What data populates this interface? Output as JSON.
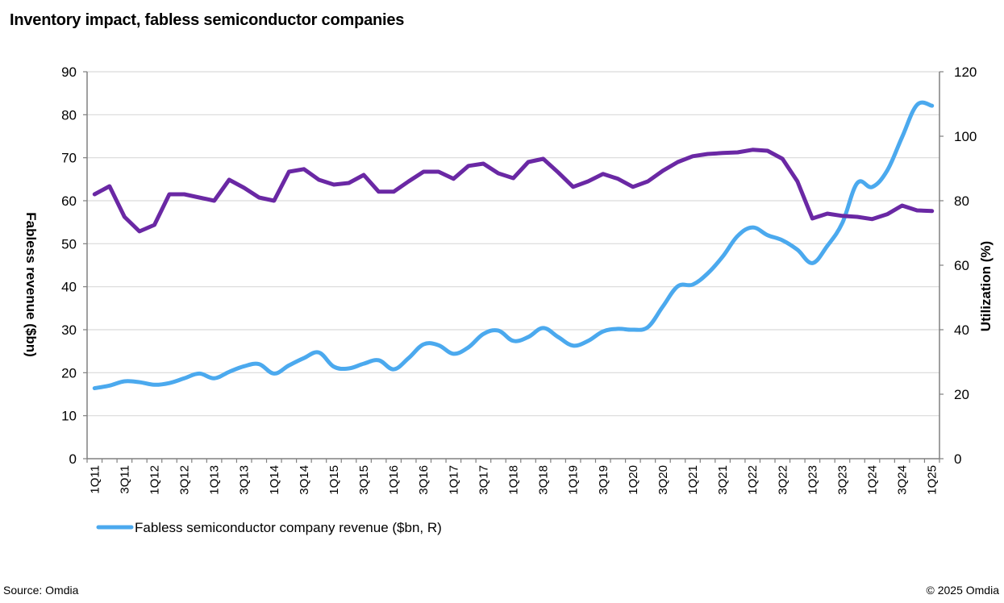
{
  "header": {
    "title": "Inventory impact, fabless semiconductor  companies"
  },
  "footer": {
    "source": "Source: Omdia",
    "copyright": "© 2025 Omdia"
  },
  "chart_data": {
    "type": "line",
    "title": "Inventory impact, fabless semiconductor  companies",
    "xlabel": "",
    "ylabel": "Fabless revenue ($bn)",
    "y2label": "Utilization (%)",
    "ylim": [
      0,
      90
    ],
    "y2lim": [
      0,
      120
    ],
    "yticks": [
      0,
      10,
      20,
      30,
      40,
      50,
      60,
      70,
      80,
      90
    ],
    "y2ticks": [
      0,
      20,
      40,
      60,
      80,
      100,
      120
    ],
    "grid": true,
    "legend_position": "bottom-left",
    "x": [
      "1Q11",
      "2Q11",
      "3Q11",
      "4Q11",
      "1Q12",
      "2Q12",
      "3Q12",
      "4Q12",
      "1Q13",
      "2Q13",
      "3Q13",
      "4Q13",
      "1Q14",
      "2Q14",
      "3Q14",
      "4Q14",
      "1Q15",
      "2Q15",
      "3Q15",
      "4Q15",
      "1Q16",
      "2Q16",
      "3Q16",
      "4Q16",
      "1Q17",
      "2Q17",
      "3Q17",
      "4Q17",
      "1Q18",
      "2Q18",
      "3Q18",
      "4Q18",
      "1Q19",
      "2Q19",
      "3Q19",
      "4Q19",
      "1Q20",
      "2Q20",
      "3Q20",
      "4Q20",
      "1Q21",
      "2Q21",
      "3Q21",
      "4Q21",
      "1Q22",
      "2Q22",
      "3Q22",
      "4Q22",
      "1Q23",
      "2Q23",
      "3Q23",
      "4Q23",
      "1Q24",
      "2Q24",
      "3Q24",
      "4Q24",
      "1Q25"
    ],
    "x_tick_labels_shown": [
      "1Q11",
      "3Q11",
      "1Q12",
      "3Q12",
      "1Q13",
      "3Q13",
      "1Q14",
      "3Q14",
      "1Q15",
      "3Q15",
      "1Q16",
      "3Q16",
      "1Q17",
      "3Q17",
      "1Q18",
      "3Q18",
      "1Q19",
      "3Q19",
      "1Q20",
      "3Q20",
      "1Q21",
      "3Q21",
      "1Q22",
      "3Q22",
      "1Q23",
      "3Q23",
      "1Q24",
      "3Q24",
      "1Q25"
    ],
    "series": [
      {
        "name": "Fabless semiconductor company revenue  ($bn, R)",
        "axis": "left",
        "color": "#4BA9EE",
        "smooth": true,
        "in_legend": true,
        "values": [
          16.4,
          17.0,
          18.0,
          17.8,
          17.2,
          17.6,
          18.7,
          19.8,
          18.7,
          20.2,
          21.5,
          22.0,
          19.8,
          21.7,
          23.4,
          24.7,
          21.4,
          21.0,
          22.1,
          22.9,
          20.8,
          23.4,
          26.6,
          26.4,
          24.4,
          25.9,
          29.0,
          29.8,
          27.4,
          28.3,
          30.4,
          28.3,
          26.3,
          27.4,
          29.6,
          30.2,
          30.0,
          30.6,
          35.4,
          40.1,
          40.5,
          43.1,
          47.0,
          51.8,
          53.8,
          52.0,
          50.8,
          48.6,
          45.5,
          49.5,
          54.8,
          64.1,
          63.2,
          67.0,
          74.8,
          82.3,
          82.1
        ]
      },
      {
        "name": "Utilization (%)",
        "axis": "right",
        "color": "#6A28A4",
        "smooth": false,
        "in_legend": false,
        "values": [
          82.0,
          84.5,
          75.0,
          70.5,
          72.5,
          82.0,
          82.0,
          81.0,
          80.0,
          86.5,
          84.0,
          81.0,
          80.0,
          89.0,
          89.8,
          86.5,
          85.0,
          85.5,
          88.0,
          82.8,
          82.8,
          86.0,
          89.0,
          89.0,
          86.8,
          90.8,
          91.5,
          88.5,
          87.0,
          92.0,
          93.0,
          88.8,
          84.3,
          86.0,
          88.3,
          86.8,
          84.3,
          86.0,
          89.3,
          92.0,
          93.8,
          94.5,
          94.8,
          95.0,
          95.8,
          95.5,
          93.0,
          86.0,
          74.5,
          76.0,
          75.3,
          75.0,
          74.3,
          75.8,
          78.5,
          77.0,
          76.8
        ]
      }
    ]
  }
}
